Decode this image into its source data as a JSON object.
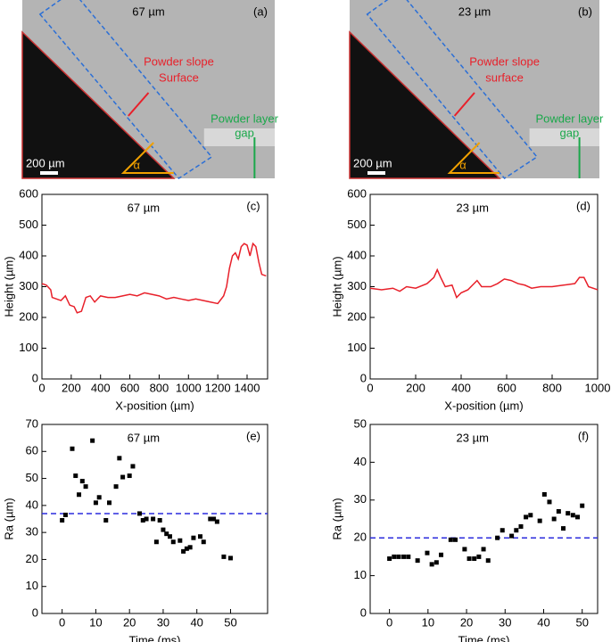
{
  "images": [
    {
      "title": "67 µm",
      "panel_label": "(a)",
      "slope_label": [
        "Powder slope",
        "Surface"
      ],
      "gap_label": [
        "Powder layer",
        "gap"
      ],
      "scale_bar": "200 µm",
      "angle": "α"
    },
    {
      "title": "23 µm",
      "panel_label": "(b)",
      "slope_label": [
        "Powder slope",
        "surface"
      ],
      "gap_label": [
        "Powder layer",
        "gap"
      ],
      "scale_bar": "200 µm",
      "angle": "α"
    }
  ],
  "chart_data": [
    {
      "type": "line",
      "title": "67 µm",
      "panel_label": "(c)",
      "xlabel": "X-position (µm)",
      "ylabel": "Height (µm)",
      "color": "#e8202a",
      "x": [
        0,
        30,
        60,
        70,
        100,
        130,
        160,
        190,
        220,
        240,
        270,
        300,
        330,
        360,
        400,
        450,
        500,
        550,
        600,
        650,
        700,
        750,
        800,
        850,
        900,
        950,
        1000,
        1050,
        1100,
        1150,
        1200,
        1240,
        1260,
        1280,
        1300,
        1320,
        1340,
        1360,
        1380,
        1400,
        1420,
        1440,
        1460,
        1480,
        1500,
        1530
      ],
      "values": [
        310,
        305,
        290,
        265,
        260,
        255,
        270,
        240,
        235,
        215,
        220,
        265,
        270,
        250,
        270,
        265,
        265,
        270,
        275,
        270,
        280,
        275,
        270,
        260,
        265,
        260,
        255,
        260,
        255,
        250,
        245,
        270,
        300,
        360,
        400,
        410,
        390,
        430,
        440,
        435,
        400,
        440,
        430,
        380,
        340,
        335
      ],
      "xlim": [
        0,
        1540
      ],
      "ylim": [
        0,
        600
      ],
      "xticks": [
        0,
        200,
        400,
        600,
        800,
        1000,
        1200,
        1400
      ],
      "yticks": [
        0,
        100,
        200,
        300,
        400,
        500,
        600
      ]
    },
    {
      "type": "line",
      "title": "23 µm",
      "panel_label": "(d)",
      "xlabel": "X-position (µm)",
      "ylabel": "Height (µm)",
      "color": "#e8202a",
      "x": [
        0,
        50,
        100,
        130,
        160,
        200,
        250,
        280,
        295,
        310,
        330,
        360,
        380,
        400,
        430,
        450,
        470,
        490,
        530,
        560,
        590,
        620,
        650,
        680,
        710,
        750,
        800,
        850,
        900,
        920,
        940,
        960,
        1000
      ],
      "values": [
        295,
        290,
        295,
        285,
        300,
        295,
        310,
        330,
        355,
        330,
        300,
        305,
        265,
        280,
        290,
        305,
        320,
        300,
        300,
        310,
        325,
        320,
        310,
        305,
        295,
        300,
        300,
        305,
        310,
        330,
        330,
        300,
        290
      ],
      "xlim": [
        0,
        1000
      ],
      "ylim": [
        0,
        600
      ],
      "xticks": [
        0,
        200,
        400,
        600,
        800,
        1000
      ],
      "yticks": [
        0,
        100,
        200,
        300,
        400,
        500,
        600
      ]
    },
    {
      "type": "scatter",
      "title": "67 µm",
      "panel_label": "(e)",
      "xlabel": "Time (ms)",
      "ylabel": "Ra (µm)",
      "color": "#000000",
      "ref_line": 37,
      "ref_color": "#2b2bdd",
      "x": [
        0,
        1,
        3,
        4,
        5,
        6,
        7,
        9,
        10,
        11,
        13,
        14,
        16,
        17,
        18,
        20,
        21,
        23,
        24,
        25,
        27,
        28,
        29,
        30,
        31,
        32,
        33,
        35,
        36,
        37,
        38,
        39,
        41,
        42,
        44,
        45,
        46,
        48,
        50
      ],
      "values": [
        34.5,
        36.5,
        61,
        51,
        44,
        49,
        47,
        64,
        41,
        43,
        34.5,
        41,
        47,
        57.5,
        50.5,
        51,
        54.5,
        37,
        34.5,
        35,
        35,
        26.5,
        34.5,
        31,
        29.5,
        28.5,
        26.5,
        27,
        23,
        24,
        24.5,
        28,
        28.5,
        26.5,
        35,
        35,
        34,
        21,
        20.5
      ],
      "xlim": [
        -6,
        61
      ],
      "ylim": [
        0,
        70
      ],
      "xticks": [
        0,
        10,
        20,
        30,
        40,
        50
      ],
      "yticks": [
        0,
        10,
        20,
        30,
        40,
        50,
        60,
        70
      ]
    },
    {
      "type": "scatter",
      "title": "23 µm",
      "panel_label": "(f)",
      "xlabel": "Time (ms)",
      "ylabel": "Ra (µm)",
      "color": "#000000",
      "ref_line": 20,
      "ref_color": "#2b2bdd",
      "x": [
        0,
        1.2,
        2.4,
        3.7,
        4.9,
        7.3,
        9.8,
        11,
        12.2,
        13.4,
        15.9,
        17.1,
        19.5,
        20.7,
        22,
        23.2,
        24.4,
        25.6,
        28,
        29.3,
        31.7,
        32.9,
        34.1,
        35.4,
        36.6,
        39,
        40.2,
        41.5,
        42.7,
        43.9,
        45.1,
        46.3,
        47.6,
        48.8,
        50
      ],
      "values": [
        14.5,
        15,
        15,
        15,
        15,
        14,
        16,
        13,
        13.5,
        15.5,
        19.5,
        19.5,
        17,
        14.5,
        14.5,
        15,
        17,
        14,
        20,
        22,
        20.5,
        22,
        23,
        25.5,
        26,
        24.5,
        31.5,
        29.5,
        25,
        27,
        22.5,
        26.5,
        26,
        25.5,
        28.5
      ],
      "xlim": [
        -5,
        54
      ],
      "ylim": [
        0,
        50
      ],
      "xticks": [
        0,
        10,
        20,
        30,
        40,
        50
      ],
      "yticks": [
        0,
        10,
        20,
        30,
        40,
        50
      ]
    }
  ]
}
